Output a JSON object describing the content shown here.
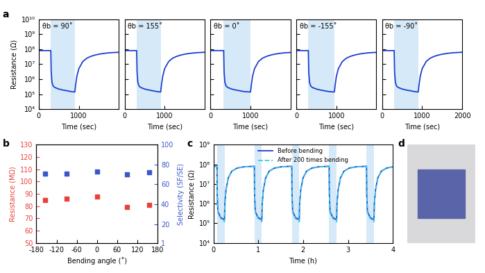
{
  "panel_labels": [
    "a",
    "b",
    "c",
    "d"
  ],
  "chart_data": [
    {
      "type": "line",
      "title": "θb = 90˚",
      "x_label": "Time (sec)",
      "y_label": "Resistance (Ω)",
      "log": "y",
      "xlim": [
        0,
        2000
      ],
      "xticks": [
        0,
        1000
      ],
      "ylim": [
        10000,
        10000000000
      ],
      "yticks": [
        {
          "value": 10000,
          "label": "10⁴"
        },
        {
          "value": 100000,
          "label": "10⁵"
        },
        {
          "value": 1000000,
          "label": "10⁶"
        },
        {
          "value": 10000000,
          "label": "10⁷"
        },
        {
          "value": 100000000,
          "label": "10⁸"
        },
        {
          "value": 1000000000,
          "label": "10⁹"
        },
        {
          "value": 10000000000,
          "label": "10¹⁰"
        }
      ],
      "shaded_regions": [
        [
          300,
          900
        ]
      ],
      "x": [
        0,
        100,
        200,
        290,
        300,
        310,
        330,
        360,
        400,
        500,
        600,
        700,
        800,
        900,
        920,
        950,
        1000,
        1100,
        1200,
        1300,
        1400,
        1500,
        1600,
        1700,
        1800,
        1900,
        2000
      ],
      "series": [
        {
          "color": "#1a3fd1",
          "line_style": "solid",
          "values": [
            80000000.0,
            80000000.0,
            80000000.0,
            80000000.0,
            80000000.0,
            3000000.0,
            600000.0,
            350000.0,
            280000.0,
            220000.0,
            190000.0,
            170000.0,
            150000.0,
            140000.0,
            400000.0,
            1500000.0,
            5000000.0,
            15000000.0,
            25000000.0,
            33000000.0,
            40000000.0,
            46000000.0,
            51000000.0,
            55000000.0,
            58000000.0,
            60000000.0,
            62000000.0
          ]
        }
      ]
    },
    {
      "type": "line",
      "title": "θb = 155˚",
      "x_label": "Time (sec)",
      "log": "y",
      "tick_labels": "x",
      "xlim": [
        0,
        2000
      ],
      "xticks": [
        0,
        1000
      ],
      "ylim": [
        10000,
        10000000000
      ],
      "yticks": [
        10000,
        100000,
        1000000,
        10000000,
        100000000,
        1000000000,
        10000000000
      ],
      "shaded_regions": [
        [
          300,
          900
        ]
      ],
      "x": [
        0,
        100,
        200,
        290,
        300,
        310,
        330,
        360,
        400,
        500,
        600,
        700,
        800,
        900,
        920,
        950,
        1000,
        1100,
        1200,
        1300,
        1400,
        1500,
        1600,
        1700,
        1800,
        1900,
        2000
      ],
      "series": [
        {
          "color": "#1a3fd1",
          "line_style": "solid",
          "values": [
            80000000.0,
            80000000.0,
            80000000.0,
            80000000.0,
            80000000.0,
            3000000.0,
            600000.0,
            350000.0,
            280000.0,
            220000.0,
            190000.0,
            170000.0,
            150000.0,
            140000.0,
            400000.0,
            1500000.0,
            5000000.0,
            15000000.0,
            25000000.0,
            33000000.0,
            40000000.0,
            46000000.0,
            51000000.0,
            55000000.0,
            58000000.0,
            60000000.0,
            62000000.0
          ]
        }
      ]
    },
    {
      "type": "line",
      "title": "θb = 0˚",
      "x_label": "Time (sec)",
      "log": "y",
      "tick_labels": "x",
      "xlim": [
        0,
        2000
      ],
      "xticks": [
        0,
        1000
      ],
      "ylim": [
        10000,
        10000000000
      ],
      "yticks": [
        10000,
        100000,
        1000000,
        10000000,
        100000000,
        1000000000,
        10000000000
      ],
      "shaded_regions": [
        [
          330,
          1000
        ]
      ],
      "x": [
        0,
        100,
        200,
        320,
        330,
        340,
        360,
        390,
        430,
        530,
        630,
        730,
        830,
        1000,
        1020,
        1050,
        1100,
        1200,
        1300,
        1400,
        1500,
        1600,
        1700,
        1800,
        1900,
        2000
      ],
      "series": [
        {
          "color": "#1a3fd1",
          "line_style": "solid",
          "values": [
            80000000.0,
            80000000.0,
            80000000.0,
            80000000.0,
            80000000.0,
            3000000.0,
            600000.0,
            350000.0,
            280000.0,
            220000.0,
            190000.0,
            170000.0,
            150000.0,
            140000.0,
            400000.0,
            1500000.0,
            5000000.0,
            15000000.0,
            25000000.0,
            33000000.0,
            40000000.0,
            46000000.0,
            51000000.0,
            55000000.0,
            58000000.0,
            60000000.0
          ]
        }
      ]
    },
    {
      "type": "line",
      "title": "θb = -155˚",
      "x_label": "Time (sec)",
      "log": "y",
      "tick_labels": "x",
      "xlim": [
        0,
        2000
      ],
      "xticks": [
        0,
        1000
      ],
      "ylim": [
        10000,
        10000000000
      ],
      "yticks": [
        10000,
        100000,
        1000000,
        10000000,
        100000000,
        1000000000,
        10000000000
      ],
      "shaded_regions": [
        [
          300,
          950
        ]
      ],
      "x": [
        0,
        100,
        200,
        290,
        300,
        310,
        330,
        360,
        400,
        500,
        600,
        700,
        800,
        950,
        970,
        1000,
        1050,
        1150,
        1250,
        1350,
        1450,
        1550,
        1650,
        1750,
        1850,
        2000
      ],
      "series": [
        {
          "color": "#1a3fd1",
          "line_style": "solid",
          "values": [
            80000000.0,
            80000000.0,
            80000000.0,
            80000000.0,
            80000000.0,
            3000000.0,
            600000.0,
            350000.0,
            280000.0,
            220000.0,
            190000.0,
            170000.0,
            150000.0,
            140000.0,
            400000.0,
            1500000.0,
            5000000.0,
            15000000.0,
            25000000.0,
            33000000.0,
            40000000.0,
            46000000.0,
            51000000.0,
            55000000.0,
            58000000.0,
            61000000.0
          ]
        }
      ]
    },
    {
      "type": "line",
      "title": "θb = -90˚",
      "x_label": "Time (sec)",
      "log": "y",
      "tick_labels": "x",
      "xlim": [
        0,
        2000
      ],
      "xticks": [
        0,
        1000,
        2000
      ],
      "ylim": [
        10000,
        10000000000
      ],
      "yticks": [
        10000,
        100000,
        1000000,
        10000000,
        100000000,
        1000000000,
        10000000000
      ],
      "shaded_regions": [
        [
          300,
          900
        ]
      ],
      "x": [
        0,
        100,
        200,
        290,
        300,
        310,
        330,
        360,
        400,
        500,
        600,
        700,
        800,
        900,
        920,
        950,
        1000,
        1100,
        1200,
        1300,
        1400,
        1500,
        1600,
        1700,
        1800,
        1900,
        2000
      ],
      "series": [
        {
          "color": "#1a3fd1",
          "line_style": "solid",
          "values": [
            80000000.0,
            80000000.0,
            80000000.0,
            80000000.0,
            80000000.0,
            3000000.0,
            600000.0,
            350000.0,
            280000.0,
            220000.0,
            190000.0,
            170000.0,
            150000.0,
            140000.0,
            400000.0,
            1500000.0,
            5000000.0,
            15000000.0,
            25000000.0,
            33000000.0,
            40000000.0,
            46000000.0,
            51000000.0,
            55000000.0,
            58000000.0,
            60000000.0,
            62000000.0
          ]
        }
      ]
    },
    {
      "type": "scatter",
      "x_label": "Bending angle (˚)",
      "y_label": "Resistance (MΩ)",
      "y2_label": "Selectivity (SF/SE)",
      "xlim": [
        -180,
        180
      ],
      "xticks": [
        -180,
        -120,
        -60,
        0,
        60,
        120,
        180
      ],
      "ylim": [
        50,
        130
      ],
      "yticks": [
        50,
        60,
        70,
        80,
        90,
        100,
        110,
        120,
        130
      ],
      "y2lim": [
        1,
        100
      ],
      "y2ticks": [
        1,
        20,
        40,
        60,
        80,
        100
      ],
      "x": [
        -155,
        -90,
        0,
        90,
        155
      ],
      "series": [
        {
          "color": "#e8413c",
          "marker": "s",
          "values": [
            85,
            86,
            88,
            79,
            81
          ]
        },
        {
          "color": "#3a57c8",
          "marker": "s",
          "axis": "y2",
          "values": [
            71,
            71,
            73,
            70,
            72
          ]
        }
      ]
    },
    {
      "type": "line",
      "x_label": "Time (h)",
      "y_label": "Resistance (Ω)",
      "log": "y",
      "legend": "upper center",
      "xlim": [
        0,
        4
      ],
      "xticks": [
        0,
        1,
        2,
        3,
        4
      ],
      "ylim": [
        10000,
        1000000000
      ],
      "yticks": [
        {
          "value": 10000,
          "label": "10⁴"
        },
        {
          "value": 100000,
          "label": "10⁵"
        },
        {
          "value": 1000000,
          "label": "10⁶"
        },
        {
          "value": 10000000,
          "label": "10⁷"
        },
        {
          "value": 100000000,
          "label": "10⁸"
        },
        {
          "value": 1000000000,
          "label": "10⁹"
        }
      ],
      "shaded_regions": [
        [
          0.08,
          0.247
        ],
        [
          0.913,
          1.08
        ],
        [
          1.747,
          1.914
        ],
        [
          2.58,
          2.747
        ],
        [
          3.413,
          3.58
        ]
      ],
      "x": [
        0,
        0.08,
        0.085,
        0.1,
        0.16,
        0.247,
        0.255,
        0.28,
        0.33,
        0.41,
        0.53,
        0.68,
        0.913,
        0.918,
        0.933,
        0.993,
        1.08,
        1.088,
        1.113,
        1.163,
        1.243,
        1.363,
        1.513,
        1.747,
        1.752,
        1.767,
        1.827,
        1.914,
        1.922,
        1.947,
        1.997,
        2.077,
        2.197,
        2.347,
        2.58,
        2.585,
        2.6,
        2.66,
        2.747,
        2.755,
        2.78,
        2.83,
        2.91,
        3.03,
        3.18,
        3.413,
        3.418,
        3.433,
        3.493,
        3.58,
        3.588,
        3.613,
        3.663,
        3.743,
        3.863,
        4.0
      ],
      "series": [
        {
          "name": "Before bending",
          "color": "#1a3fd1",
          "line_style": "solid",
          "values": [
            80000000.0,
            80000000.0,
            3000000.0,
            400000.0,
            200000.0,
            150000.0,
            1000000.0,
            5000000.0,
            20000000.0,
            45000000.0,
            65000000.0,
            75000000.0,
            80000000.0,
            3000000.0,
            400000.0,
            200000.0,
            150000.0,
            1000000.0,
            5000000.0,
            20000000.0,
            45000000.0,
            65000000.0,
            75000000.0,
            80000000.0,
            3000000.0,
            400000.0,
            200000.0,
            150000.0,
            1000000.0,
            5000000.0,
            20000000.0,
            45000000.0,
            65000000.0,
            75000000.0,
            80000000.0,
            3000000.0,
            400000.0,
            200000.0,
            150000.0,
            1000000.0,
            5000000.0,
            20000000.0,
            45000000.0,
            65000000.0,
            75000000.0,
            80000000.0,
            3000000.0,
            400000.0,
            200000.0,
            150000.0,
            1000000.0,
            5000000.0,
            20000000.0,
            45000000.0,
            65000000.0,
            75000000.0
          ]
        },
        {
          "name": "After 200 times bending",
          "color": "#3cc8e0",
          "line_style": "dashed",
          "values": [
            78000000.0,
            78000000.0,
            3000000.0,
            350000.0,
            180000.0,
            120000.0,
            900000.0,
            4500000.0,
            19000000.0,
            44000000.0,
            64000000.0,
            74000000.0,
            78000000.0,
            3000000.0,
            350000.0,
            180000.0,
            120000.0,
            900000.0,
            4500000.0,
            19000000.0,
            44000000.0,
            64000000.0,
            74000000.0,
            78000000.0,
            3000000.0,
            350000.0,
            180000.0,
            120000.0,
            900000.0,
            4500000.0,
            19000000.0,
            44000000.0,
            64000000.0,
            74000000.0,
            78000000.0,
            3000000.0,
            350000.0,
            180000.0,
            120000.0,
            900000.0,
            4500000.0,
            19000000.0,
            44000000.0,
            64000000.0,
            74000000.0,
            78000000.0,
            3000000.0,
            350000.0,
            180000.0,
            120000.0,
            900000.0,
            4500000.0,
            19000000.0,
            44000000.0,
            64000000.0,
            74000000.0
          ]
        }
      ]
    }
  ]
}
